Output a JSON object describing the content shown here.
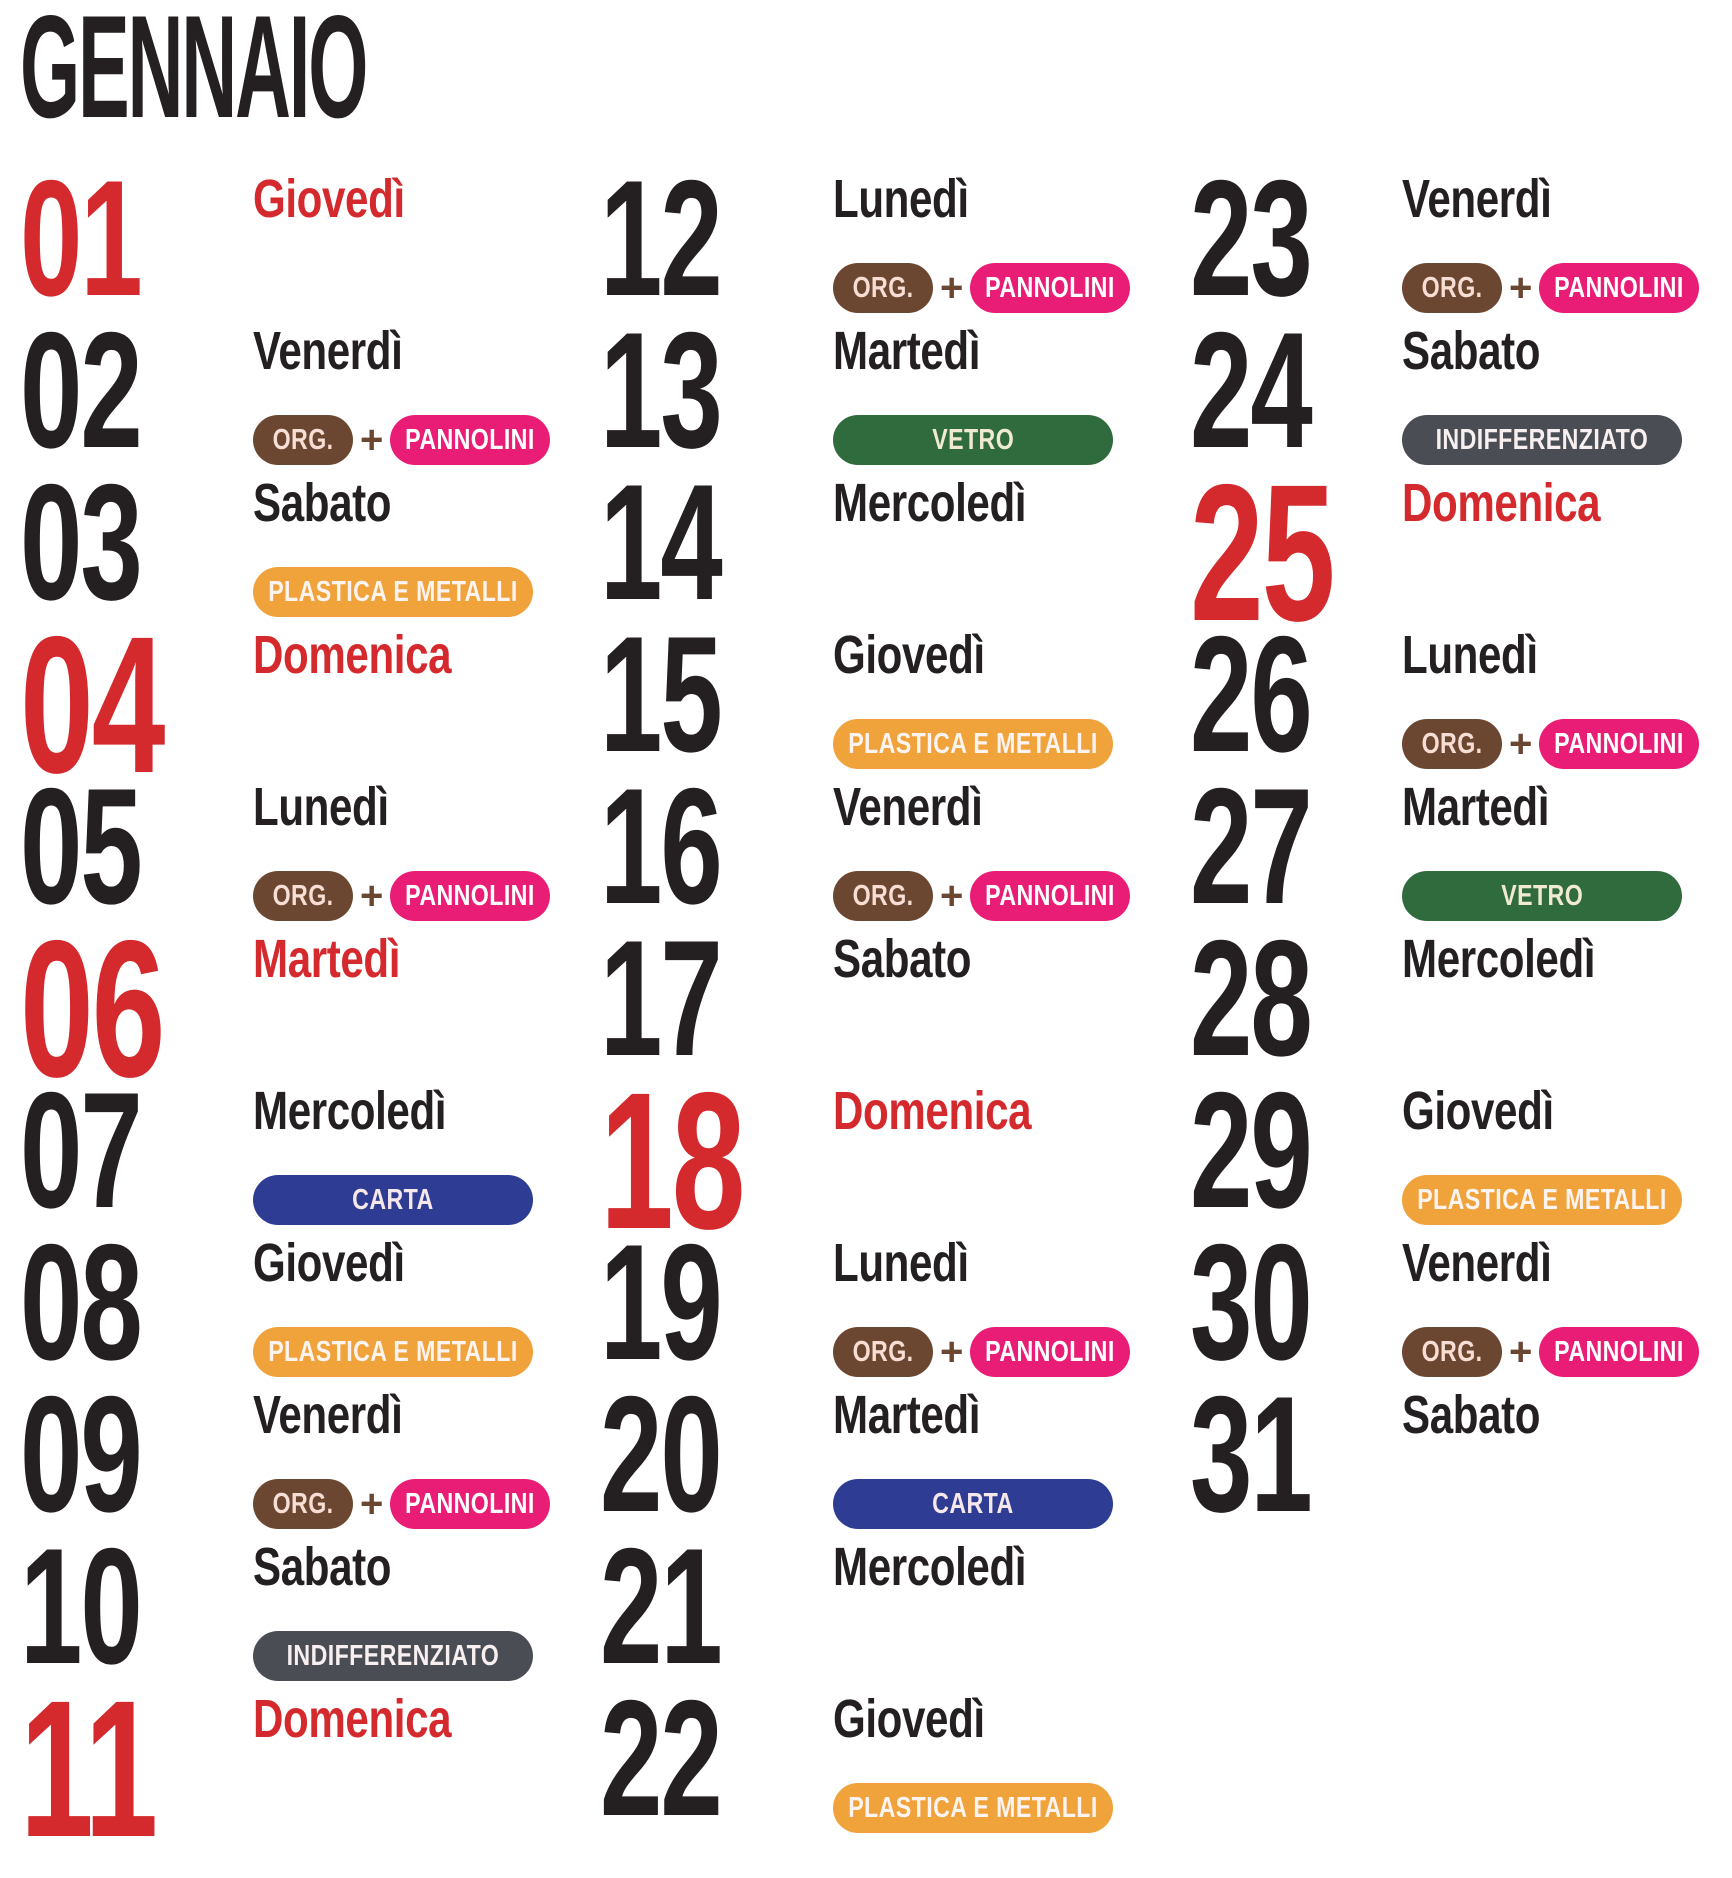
{
  "title": "GENNAIO",
  "colors": {
    "black": "#241f21",
    "red": "#d4292d",
    "plus": "#6b4731"
  },
  "badges": {
    "org": {
      "label": "ORG.",
      "bg": "#6b4731",
      "fg": "#f7ddd3",
      "size": "small"
    },
    "pannolini": {
      "label": "PANNOLINI",
      "bg": "#e91d75",
      "fg": "#ffffff",
      "size": "medium"
    },
    "plastica": {
      "label": "PLASTICA E METALLI",
      "bg": "#f0a23b",
      "fg": "#fdf3f0",
      "size": "full"
    },
    "carta": {
      "label": "CARTA",
      "bg": "#2e3d93",
      "fg": "#f6e7ea",
      "size": "full"
    },
    "vetro": {
      "label": "VETRO",
      "bg": "#2f6b3d",
      "fg": "#f1ead3",
      "size": "full"
    },
    "indifferenziato": {
      "label": "INDIFFERENZIATO",
      "bg": "#4a4e54",
      "fg": "#f8eff0",
      "size": "full"
    }
  },
  "plus_sign": "+",
  "columns": [
    {
      "days": [
        {
          "num": "01",
          "weekday": "Giovedì",
          "red": true,
          "large": false,
          "badges": []
        },
        {
          "num": "02",
          "weekday": "Venerdì",
          "red": false,
          "large": false,
          "badges": [
            "org",
            "pannolini"
          ]
        },
        {
          "num": "03",
          "weekday": "Sabato",
          "red": false,
          "large": false,
          "badges": [
            "plastica"
          ]
        },
        {
          "num": "04",
          "weekday": "Domenica",
          "red": true,
          "large": true,
          "badges": []
        },
        {
          "num": "05",
          "weekday": "Lunedì",
          "red": false,
          "large": false,
          "badges": [
            "org",
            "pannolini"
          ]
        },
        {
          "num": "06",
          "weekday": "Martedì",
          "red": true,
          "large": true,
          "badges": []
        },
        {
          "num": "07",
          "weekday": "Mercoledì",
          "red": false,
          "large": false,
          "badges": [
            "carta"
          ]
        },
        {
          "num": "08",
          "weekday": "Giovedì",
          "red": false,
          "large": false,
          "badges": [
            "plastica"
          ]
        },
        {
          "num": "09",
          "weekday": "Venerdì",
          "red": false,
          "large": false,
          "badges": [
            "org",
            "pannolini"
          ]
        },
        {
          "num": "10",
          "weekday": "Sabato",
          "red": false,
          "large": false,
          "badges": [
            "indifferenziato"
          ]
        },
        {
          "num": "11",
          "weekday": "Domenica",
          "red": true,
          "large": true,
          "badges": []
        }
      ]
    },
    {
      "days": [
        {
          "num": "12",
          "weekday": "Lunedì",
          "red": false,
          "large": false,
          "badges": [
            "org",
            "pannolini"
          ]
        },
        {
          "num": "13",
          "weekday": "Martedì",
          "red": false,
          "large": false,
          "badges": [
            "vetro"
          ]
        },
        {
          "num": "14",
          "weekday": "Mercoledì",
          "red": false,
          "large": false,
          "badges": []
        },
        {
          "num": "15",
          "weekday": "Giovedì",
          "red": false,
          "large": false,
          "badges": [
            "plastica"
          ]
        },
        {
          "num": "16",
          "weekday": "Venerdì",
          "red": false,
          "large": false,
          "badges": [
            "org",
            "pannolini"
          ]
        },
        {
          "num": "17",
          "weekday": "Sabato",
          "red": false,
          "large": false,
          "badges": []
        },
        {
          "num": "18",
          "weekday": "Domenica",
          "red": true,
          "large": true,
          "badges": []
        },
        {
          "num": "19",
          "weekday": "Lunedì",
          "red": false,
          "large": false,
          "badges": [
            "org",
            "pannolini"
          ]
        },
        {
          "num": "20",
          "weekday": "Martedì",
          "red": false,
          "large": false,
          "badges": [
            "carta"
          ]
        },
        {
          "num": "21",
          "weekday": "Mercoledì",
          "red": false,
          "large": false,
          "badges": []
        },
        {
          "num": "22",
          "weekday": "Giovedì",
          "red": false,
          "large": false,
          "badges": [
            "plastica"
          ]
        }
      ]
    },
    {
      "days": [
        {
          "num": "23",
          "weekday": "Venerdì",
          "red": false,
          "large": false,
          "badges": [
            "org",
            "pannolini"
          ]
        },
        {
          "num": "24",
          "weekday": "Sabato",
          "red": false,
          "large": false,
          "badges": [
            "indifferenziato"
          ]
        },
        {
          "num": "25",
          "weekday": "Domenica",
          "red": true,
          "large": true,
          "badges": []
        },
        {
          "num": "26",
          "weekday": "Lunedì",
          "red": false,
          "large": false,
          "badges": [
            "org",
            "pannolini"
          ]
        },
        {
          "num": "27",
          "weekday": "Martedì",
          "red": false,
          "large": false,
          "badges": [
            "vetro"
          ]
        },
        {
          "num": "28",
          "weekday": "Mercoledì",
          "red": false,
          "large": false,
          "badges": []
        },
        {
          "num": "29",
          "weekday": "Giovedì",
          "red": false,
          "large": false,
          "badges": [
            "plastica"
          ]
        },
        {
          "num": "30",
          "weekday": "Venerdì",
          "red": false,
          "large": false,
          "badges": [
            "org",
            "pannolini"
          ]
        },
        {
          "num": "31",
          "weekday": "Sabato",
          "red": false,
          "large": false,
          "badges": []
        }
      ]
    }
  ]
}
